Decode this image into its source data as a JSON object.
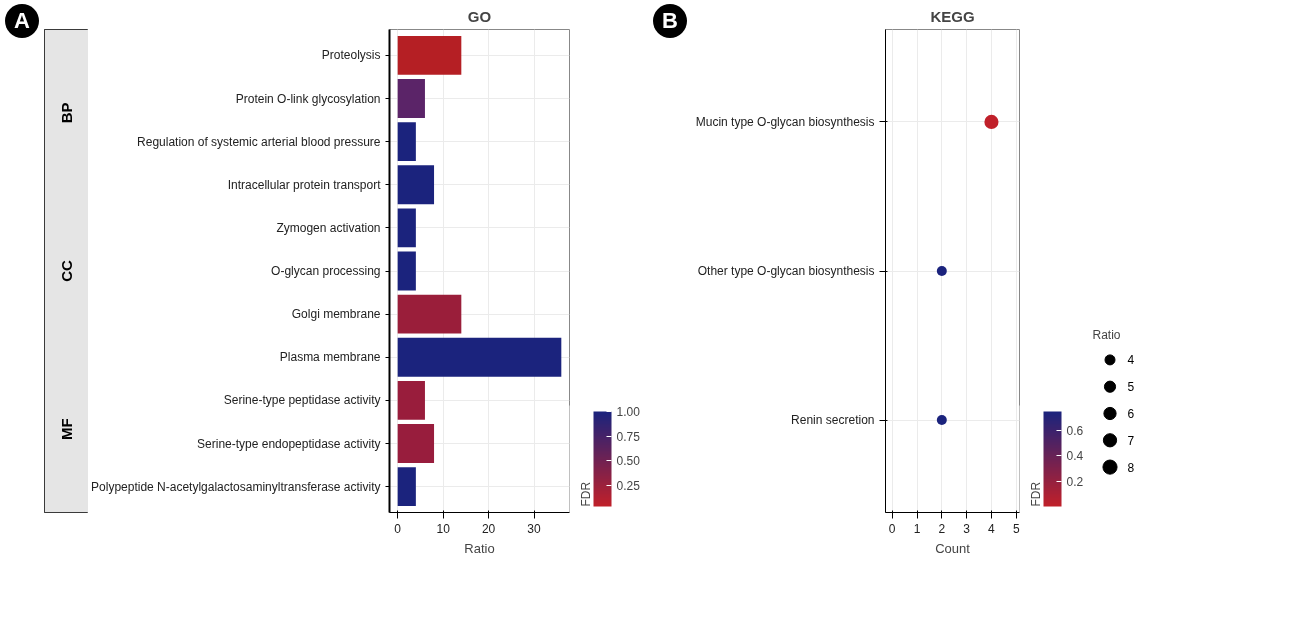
{
  "chart_data": [
    {
      "type": "bar",
      "orientation": "horizontal",
      "title": "GO",
      "xlabel": "Ratio",
      "clabel": "FDR",
      "categories": [
        "Proteolysis",
        "Protein O-link glycosylation",
        "Regulation of systemic arterial blood pressure",
        "Intracellular protein transport",
        "Zymogen activation",
        "O-glycan processing",
        "Golgi membrane",
        "Plasma membrane",
        "Serine-type peptidase activity",
        "Serine-type endopeptidase activity",
        "Polypeptide N-acetylgalactosaminyltransferase activity"
      ],
      "values": [
        14,
        6,
        4,
        8,
        4,
        4,
        14,
        36,
        6,
        8,
        4
      ],
      "colors": [
        "#b51f24",
        "#5b2468",
        "#1b237d",
        "#1b237d",
        "#1b237d",
        "#1b237d",
        "#9a1e3a",
        "#1b237d",
        "#991d3c",
        "#981d3d",
        "#1b237d"
      ],
      "xlim": [
        -1.8,
        37.8
      ],
      "xticks": [
        0,
        10,
        20,
        30
      ],
      "clim": [
        0.04,
        1.0
      ],
      "cticks": [
        0.25,
        {
          "value": 0.5,
          "label": "0.50"
        },
        0.75,
        {
          "value": 1.0,
          "label": "1.00"
        }
      ],
      "grid": true,
      "annotations": [
        "A",
        "BP",
        "CC",
        "MF"
      ]
    },
    {
      "type": "scatter",
      "orientation": "horizontal",
      "title": "KEGG",
      "xlabel": "Count",
      "clabel": "FDR",
      "legend_title": "Ratio",
      "categories": [
        "Mucin type O-glycan biosynthesis",
        "Other type O-glycan biosynthesis",
        "Renin secretion"
      ],
      "values": [
        4,
        2,
        2
      ],
      "cvalues": [
        0.01,
        0.74,
        0.74
      ],
      "sizes": [
        8,
        4,
        4
      ],
      "size_legend": [
        4,
        5,
        6,
        7,
        8
      ],
      "xlim": [
        -0.27,
        5.13
      ],
      "xticks": [
        0,
        1,
        2,
        3,
        4,
        5
      ],
      "clim": [
        0.0,
        0.75
      ],
      "cticks": [
        0.2,
        0.4,
        0.6
      ],
      "grid": true,
      "annotations": [
        "B"
      ]
    }
  ]
}
